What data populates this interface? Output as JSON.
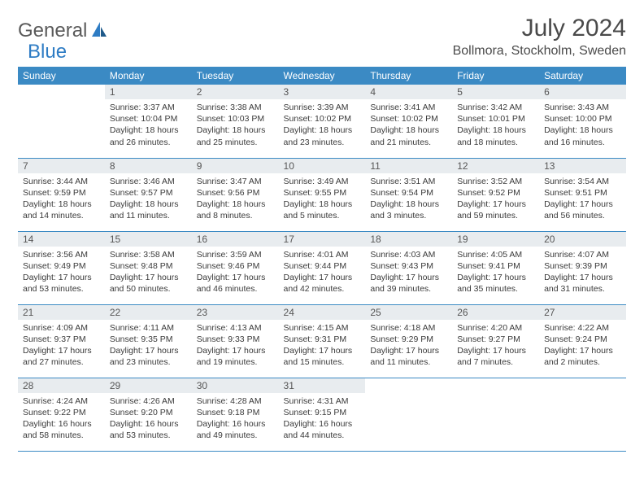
{
  "logo": {
    "word1": "General",
    "word2": "Blue"
  },
  "title": "July 2024",
  "location": "Bollmora, Stockholm, Sweden",
  "colors": {
    "header_bg": "#3b8ac4",
    "header_text": "#ffffff",
    "daynum_bg": "#e8ecef",
    "daynum_text": "#565656",
    "body_text": "#3a3a3a",
    "rule": "#3b8ac4",
    "logo_gray": "#5a5a5a",
    "logo_blue": "#2e7cc4"
  },
  "typography": {
    "title_fontsize": 30,
    "location_fontsize": 16,
    "weekday_fontsize": 12,
    "daynum_fontsize": 12,
    "cell_fontsize": 10.5
  },
  "weekdays": [
    "Sunday",
    "Monday",
    "Tuesday",
    "Wednesday",
    "Thursday",
    "Friday",
    "Saturday"
  ],
  "start_offset": 1,
  "days": [
    {
      "n": 1,
      "sunrise": "3:37 AM",
      "sunset": "10:04 PM",
      "dl": "18 hours and 26 minutes."
    },
    {
      "n": 2,
      "sunrise": "3:38 AM",
      "sunset": "10:03 PM",
      "dl": "18 hours and 25 minutes."
    },
    {
      "n": 3,
      "sunrise": "3:39 AM",
      "sunset": "10:02 PM",
      "dl": "18 hours and 23 minutes."
    },
    {
      "n": 4,
      "sunrise": "3:41 AM",
      "sunset": "10:02 PM",
      "dl": "18 hours and 21 minutes."
    },
    {
      "n": 5,
      "sunrise": "3:42 AM",
      "sunset": "10:01 PM",
      "dl": "18 hours and 18 minutes."
    },
    {
      "n": 6,
      "sunrise": "3:43 AM",
      "sunset": "10:00 PM",
      "dl": "18 hours and 16 minutes."
    },
    {
      "n": 7,
      "sunrise": "3:44 AM",
      "sunset": "9:59 PM",
      "dl": "18 hours and 14 minutes."
    },
    {
      "n": 8,
      "sunrise": "3:46 AM",
      "sunset": "9:57 PM",
      "dl": "18 hours and 11 minutes."
    },
    {
      "n": 9,
      "sunrise": "3:47 AM",
      "sunset": "9:56 PM",
      "dl": "18 hours and 8 minutes."
    },
    {
      "n": 10,
      "sunrise": "3:49 AM",
      "sunset": "9:55 PM",
      "dl": "18 hours and 5 minutes."
    },
    {
      "n": 11,
      "sunrise": "3:51 AM",
      "sunset": "9:54 PM",
      "dl": "18 hours and 3 minutes."
    },
    {
      "n": 12,
      "sunrise": "3:52 AM",
      "sunset": "9:52 PM",
      "dl": "17 hours and 59 minutes."
    },
    {
      "n": 13,
      "sunrise": "3:54 AM",
      "sunset": "9:51 PM",
      "dl": "17 hours and 56 minutes."
    },
    {
      "n": 14,
      "sunrise": "3:56 AM",
      "sunset": "9:49 PM",
      "dl": "17 hours and 53 minutes."
    },
    {
      "n": 15,
      "sunrise": "3:58 AM",
      "sunset": "9:48 PM",
      "dl": "17 hours and 50 minutes."
    },
    {
      "n": 16,
      "sunrise": "3:59 AM",
      "sunset": "9:46 PM",
      "dl": "17 hours and 46 minutes."
    },
    {
      "n": 17,
      "sunrise": "4:01 AM",
      "sunset": "9:44 PM",
      "dl": "17 hours and 42 minutes."
    },
    {
      "n": 18,
      "sunrise": "4:03 AM",
      "sunset": "9:43 PM",
      "dl": "17 hours and 39 minutes."
    },
    {
      "n": 19,
      "sunrise": "4:05 AM",
      "sunset": "9:41 PM",
      "dl": "17 hours and 35 minutes."
    },
    {
      "n": 20,
      "sunrise": "4:07 AM",
      "sunset": "9:39 PM",
      "dl": "17 hours and 31 minutes."
    },
    {
      "n": 21,
      "sunrise": "4:09 AM",
      "sunset": "9:37 PM",
      "dl": "17 hours and 27 minutes."
    },
    {
      "n": 22,
      "sunrise": "4:11 AM",
      "sunset": "9:35 PM",
      "dl": "17 hours and 23 minutes."
    },
    {
      "n": 23,
      "sunrise": "4:13 AM",
      "sunset": "9:33 PM",
      "dl": "17 hours and 19 minutes."
    },
    {
      "n": 24,
      "sunrise": "4:15 AM",
      "sunset": "9:31 PM",
      "dl": "17 hours and 15 minutes."
    },
    {
      "n": 25,
      "sunrise": "4:18 AM",
      "sunset": "9:29 PM",
      "dl": "17 hours and 11 minutes."
    },
    {
      "n": 26,
      "sunrise": "4:20 AM",
      "sunset": "9:27 PM",
      "dl": "17 hours and 7 minutes."
    },
    {
      "n": 27,
      "sunrise": "4:22 AM",
      "sunset": "9:24 PM",
      "dl": "17 hours and 2 minutes."
    },
    {
      "n": 28,
      "sunrise": "4:24 AM",
      "sunset": "9:22 PM",
      "dl": "16 hours and 58 minutes."
    },
    {
      "n": 29,
      "sunrise": "4:26 AM",
      "sunset": "9:20 PM",
      "dl": "16 hours and 53 minutes."
    },
    {
      "n": 30,
      "sunrise": "4:28 AM",
      "sunset": "9:18 PM",
      "dl": "16 hours and 49 minutes."
    },
    {
      "n": 31,
      "sunrise": "4:31 AM",
      "sunset": "9:15 PM",
      "dl": "16 hours and 44 minutes."
    }
  ],
  "labels": {
    "sunrise": "Sunrise:",
    "sunset": "Sunset:",
    "daylight": "Daylight:"
  }
}
